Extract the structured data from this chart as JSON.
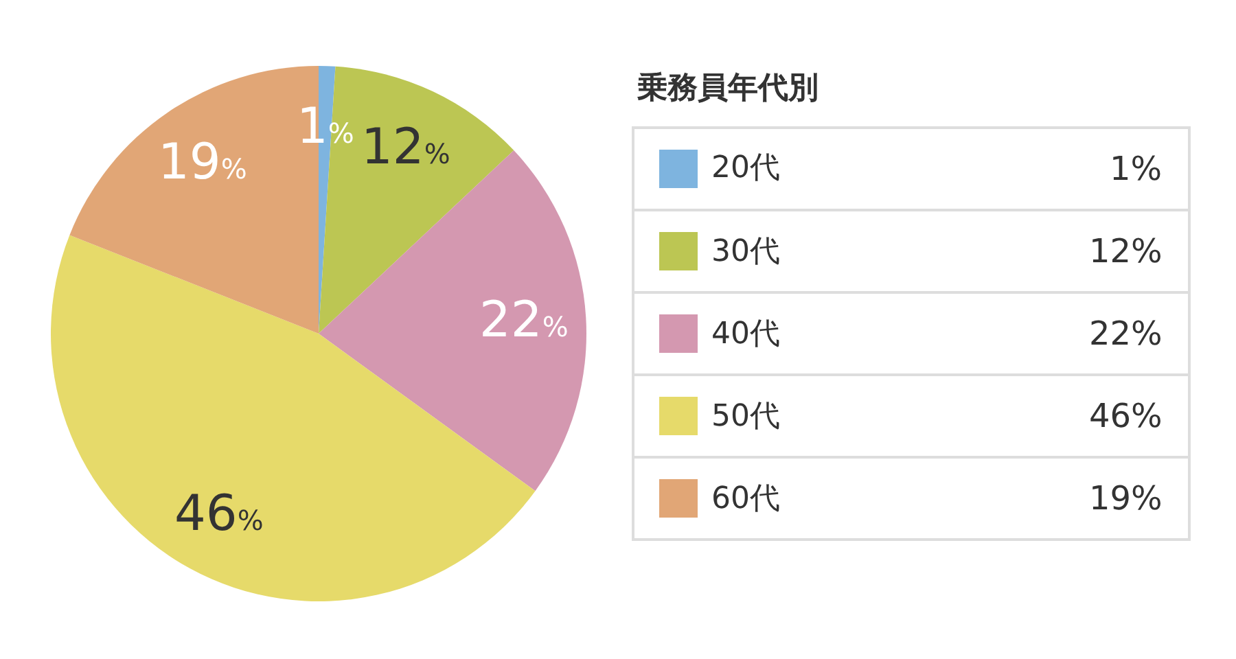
{
  "chart_data": {
    "type": "pie",
    "legend_title": "乗務員年代別",
    "categories": [
      "20代",
      "30代",
      "40代",
      "50代",
      "60代"
    ],
    "values": [
      1,
      12,
      22,
      46,
      19
    ],
    "colors": [
      "#7eb4df",
      "#bcc653",
      "#d498b0",
      "#e6da6a",
      "#e1a676"
    ],
    "value_labels": [
      "1%",
      "12%",
      "22%",
      "46%",
      "19%"
    ],
    "legend": "right"
  }
}
